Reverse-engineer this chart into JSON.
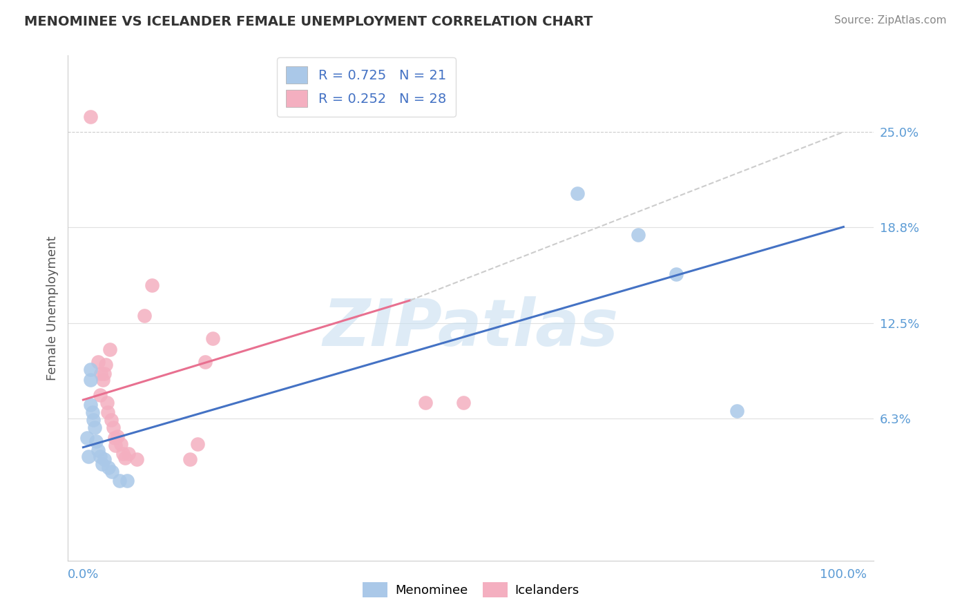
{
  "title": "MENOMINEE VS ICELANDER FEMALE UNEMPLOYMENT CORRELATION CHART",
  "source": "Source: ZipAtlas.com",
  "ylabel": "Female Unemployment",
  "menominee_color": "#aac8e8",
  "icelander_color": "#f4afc0",
  "menominee_line_color": "#4472c4",
  "icelander_line_color": "#e87090",
  "dashed_color": "#cccccc",
  "menominee_R": 0.725,
  "menominee_N": 21,
  "icelander_R": 0.252,
  "icelander_N": 28,
  "watermark": "ZIPatlas",
  "ytick_values": [
    0.063,
    0.125,
    0.188,
    0.25
  ],
  "ylim": [
    -0.03,
    0.3
  ],
  "xlim": [
    -0.02,
    1.04
  ],
  "menominee_points": [
    [
      0.005,
      0.05
    ],
    [
      0.007,
      0.038
    ],
    [
      0.01,
      0.088
    ],
    [
      0.01,
      0.095
    ],
    [
      0.01,
      0.072
    ],
    [
      0.012,
      0.067
    ],
    [
      0.013,
      0.062
    ],
    [
      0.015,
      0.057
    ],
    [
      0.017,
      0.048
    ],
    [
      0.02,
      0.042
    ],
    [
      0.022,
      0.038
    ],
    [
      0.025,
      0.033
    ],
    [
      0.028,
      0.036
    ],
    [
      0.033,
      0.031
    ],
    [
      0.038,
      0.028
    ],
    [
      0.048,
      0.022
    ],
    [
      0.058,
      0.022
    ],
    [
      0.65,
      0.21
    ],
    [
      0.73,
      0.183
    ],
    [
      0.78,
      0.157
    ],
    [
      0.86,
      0.068
    ]
  ],
  "icelander_points": [
    [
      0.01,
      0.26
    ],
    [
      0.02,
      0.1
    ],
    [
      0.022,
      0.078
    ],
    [
      0.023,
      0.092
    ],
    [
      0.026,
      0.088
    ],
    [
      0.028,
      0.092
    ],
    [
      0.03,
      0.098
    ],
    [
      0.031,
      0.073
    ],
    [
      0.032,
      0.067
    ],
    [
      0.035,
      0.108
    ],
    [
      0.037,
      0.062
    ],
    [
      0.04,
      0.057
    ],
    [
      0.041,
      0.05
    ],
    [
      0.042,
      0.045
    ],
    [
      0.045,
      0.051
    ],
    [
      0.05,
      0.046
    ],
    [
      0.052,
      0.04
    ],
    [
      0.055,
      0.037
    ],
    [
      0.06,
      0.04
    ],
    [
      0.07,
      0.036
    ],
    [
      0.08,
      0.13
    ],
    [
      0.09,
      0.15
    ],
    [
      0.14,
      0.036
    ],
    [
      0.15,
      0.046
    ],
    [
      0.16,
      0.1
    ],
    [
      0.17,
      0.115
    ],
    [
      0.45,
      0.073
    ],
    [
      0.5,
      0.073
    ]
  ],
  "menominee_line_solid": [
    [
      0.0,
      0.044
    ],
    [
      1.0,
      0.188
    ]
  ],
  "icelander_line_solid": [
    [
      0.0,
      0.075
    ],
    [
      0.43,
      0.14
    ]
  ],
  "icelander_line_dashed": [
    [
      0.43,
      0.14
    ],
    [
      1.0,
      0.25
    ]
  ],
  "background_color": "#ffffff",
  "grid_color": "#e0e0e0",
  "grid_dotted_color": "#cccccc",
  "title_color": "#333333",
  "label_color": "#5b9bd5",
  "stats_color": "#4472c4",
  "axis_color": "#cccccc",
  "legend_R_color": "#4472c4",
  "legend_N_color": "#4472c4"
}
